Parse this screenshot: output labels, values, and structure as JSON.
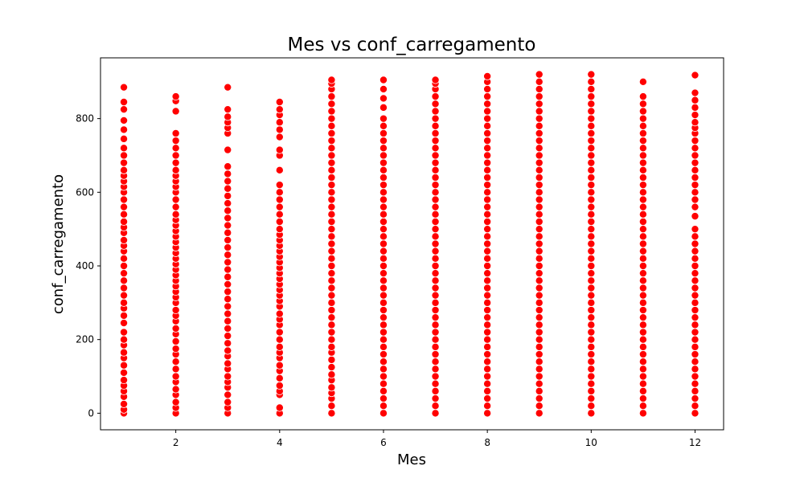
{
  "chart_data": {
    "type": "scatter",
    "title": "Mes vs conf_carregamento",
    "xlabel": "Mes",
    "ylabel": "conf_carregamento",
    "xlim": [
      0.55,
      12.55
    ],
    "ylim": [
      -45,
      965
    ],
    "xticks": [
      2,
      4,
      6,
      8,
      10,
      12
    ],
    "yticks": [
      0,
      200,
      400,
      600,
      800
    ],
    "grid": false,
    "legend": "none",
    "marker_color": "#ff0000",
    "marker_edge": "#ffffff",
    "series": [
      {
        "points": [
          {
            "x": 1,
            "y": [
              0,
              10,
              25,
              45,
              60,
              75,
              90,
              110,
              130,
              150,
              165,
              185,
              200,
              220,
              245,
              265,
              285,
              300,
              320,
              340,
              360,
              380,
              400,
              420,
              440,
              455,
              470,
              490,
              505,
              520,
              540,
              560,
              580,
              600,
              615,
              630,
              645,
              660,
              680,
              700,
              720,
              745,
              770,
              795,
              825,
              845,
              885
            ]
          },
          {
            "x": 2,
            "y": [
              0,
              15,
              30,
              50,
              65,
              85,
              100,
              120,
              140,
              160,
              175,
              195,
              215,
              230,
              250,
              265,
              280,
              300,
              315,
              330,
              345,
              360,
              375,
              390,
              405,
              420,
              435,
              450,
              465,
              480,
              495,
              510,
              525,
              540,
              560,
              580,
              600,
              615,
              630,
              645,
              660,
              680,
              700,
              720,
              740,
              760,
              820,
              848,
              860
            ]
          },
          {
            "x": 3,
            "y": [
              0,
              15,
              30,
              50,
              70,
              85,
              100,
              120,
              135,
              155,
              170,
              190,
              210,
              230,
              250,
              270,
              290,
              310,
              330,
              350,
              370,
              390,
              410,
              430,
              450,
              470,
              490,
              510,
              530,
              550,
              570,
              590,
              610,
              630,
              650,
              670,
              715,
              760,
              775,
              790,
              805,
              825,
              885
            ]
          },
          {
            "x": 4,
            "y": [
              0,
              15,
              50,
              60,
              75,
              95,
              115,
              130,
              150,
              165,
              180,
              200,
              220,
              240,
              255,
              270,
              290,
              305,
              320,
              335,
              350,
              365,
              380,
              395,
              410,
              425,
              440,
              455,
              470,
              485,
              500,
              520,
              540,
              560,
              580,
              600,
              620,
              660,
              700,
              715,
              750,
              770,
              790,
              810,
              825,
              845
            ]
          },
          {
            "x": 5,
            "y": [
              0,
              20,
              40,
              55,
              70,
              90,
              105,
              125,
              145,
              165,
              180,
              200,
              220,
              240,
              260,
              280,
              300,
              320,
              340,
              360,
              380,
              400,
              420,
              440,
              460,
              480,
              500,
              520,
              540,
              560,
              580,
              600,
              620,
              640,
              660,
              680,
              700,
              720,
              740,
              760,
              780,
              800,
              820,
              840,
              860,
              880,
              895,
              905
            ]
          },
          {
            "x": 6,
            "y": [
              0,
              20,
              40,
              60,
              80,
              100,
              120,
              140,
              160,
              180,
              200,
              220,
              240,
              260,
              280,
              300,
              320,
              340,
              360,
              380,
              400,
              420,
              440,
              460,
              480,
              500,
              520,
              540,
              560,
              580,
              600,
              620,
              640,
              660,
              680,
              700,
              720,
              740,
              760,
              780,
              800,
              830,
              855,
              880,
              905
            ]
          },
          {
            "x": 7,
            "y": [
              0,
              20,
              40,
              60,
              80,
              100,
              120,
              140,
              160,
              180,
              200,
              220,
              240,
              260,
              280,
              300,
              320,
              340,
              360,
              380,
              400,
              420,
              440,
              460,
              480,
              500,
              520,
              540,
              560,
              580,
              600,
              620,
              640,
              660,
              680,
              700,
              720,
              740,
              760,
              780,
              800,
              820,
              840,
              860,
              880,
              895,
              905
            ]
          },
          {
            "x": 8,
            "y": [
              0,
              20,
              40,
              60,
              80,
              100,
              120,
              140,
              160,
              180,
              200,
              220,
              240,
              260,
              280,
              300,
              320,
              340,
              360,
              380,
              400,
              420,
              440,
              460,
              480,
              500,
              520,
              540,
              560,
              580,
              600,
              620,
              640,
              660,
              680,
              700,
              720,
              740,
              760,
              780,
              800,
              820,
              840,
              860,
              880,
              900,
              915
            ]
          },
          {
            "x": 9,
            "y": [
              0,
              20,
              40,
              60,
              80,
              100,
              120,
              140,
              160,
              180,
              200,
              220,
              240,
              260,
              280,
              300,
              320,
              340,
              360,
              380,
              400,
              420,
              440,
              460,
              480,
              500,
              520,
              540,
              560,
              580,
              600,
              620,
              640,
              660,
              680,
              700,
              720,
              740,
              760,
              780,
              800,
              820,
              840,
              860,
              880,
              900,
              920
            ]
          },
          {
            "x": 10,
            "y": [
              0,
              20,
              40,
              60,
              80,
              100,
              120,
              140,
              160,
              180,
              200,
              220,
              240,
              260,
              280,
              300,
              320,
              340,
              360,
              380,
              400,
              420,
              440,
              460,
              480,
              500,
              520,
              540,
              560,
              580,
              600,
              620,
              640,
              660,
              680,
              700,
              720,
              740,
              760,
              780,
              800,
              820,
              840,
              860,
              880,
              900,
              920
            ]
          },
          {
            "x": 11,
            "y": [
              0,
              20,
              40,
              60,
              80,
              100,
              120,
              140,
              160,
              180,
              200,
              220,
              240,
              260,
              280,
              300,
              320,
              340,
              360,
              380,
              400,
              420,
              440,
              460,
              480,
              500,
              520,
              540,
              560,
              580,
              600,
              620,
              640,
              660,
              680,
              700,
              720,
              740,
              760,
              780,
              800,
              820,
              840,
              860,
              900
            ]
          },
          {
            "x": 12,
            "y": [
              0,
              20,
              40,
              60,
              80,
              100,
              120,
              140,
              160,
              180,
              200,
              220,
              240,
              260,
              280,
              300,
              320,
              340,
              360,
              380,
              400,
              420,
              440,
              460,
              480,
              500,
              535,
              560,
              580,
              600,
              620,
              640,
              660,
              680,
              700,
              720,
              740,
              760,
              775,
              790,
              810,
              830,
              850,
              870,
              918
            ]
          }
        ]
      }
    ]
  }
}
